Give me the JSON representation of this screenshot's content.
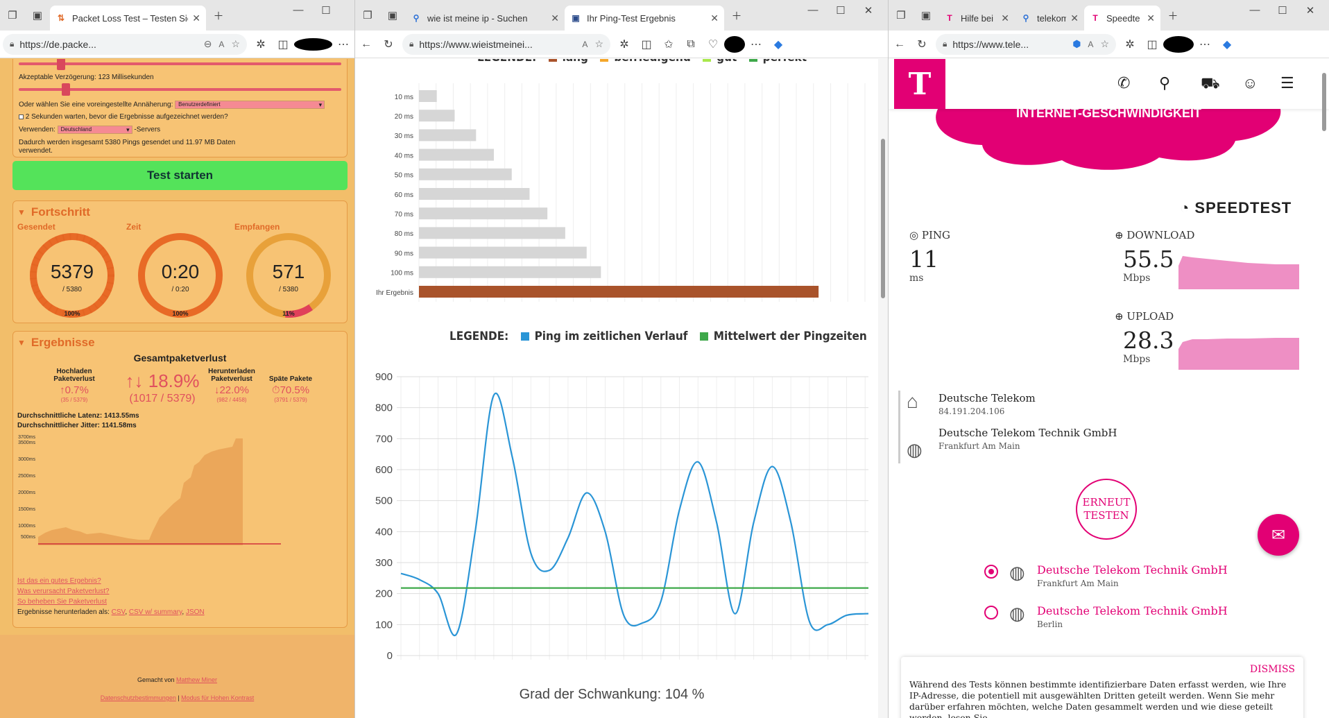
{
  "win1": {
    "tabs": [
      {
        "label": "Packet Loss Test – Testen Sie Ihr",
        "active": true
      }
    ],
    "url": "https://de.packe...",
    "settings": {
      "acceptable_delay": "Akzeptable Verzögerung: 123 Millisekunden",
      "preset_label": "Oder wählen Sie eine voreingestellte Annäherung:",
      "preset_value": "Benutzerdefiniert",
      "wait_label": "2 Sekunden warten, bevor die Ergebnisse aufgezeichnet werden?",
      "use_label": "Verwenden:",
      "server_value": "Deutschland",
      "servers_suffix": "-Servers",
      "summary": "Dadurch werden insgesamt 5380 Pings gesendet und 11.97 MB Daten verwendet."
    },
    "start_button": "Test starten",
    "progress": {
      "title": "Fortschritt",
      "sent": {
        "label": "Gesendet",
        "value": "5379",
        "sub": "/ 5380",
        "pct": "100%",
        "fraction": 1.0
      },
      "time": {
        "label": "Zeit",
        "value": "0:20",
        "sub": "/ 0:20",
        "pct": "100%",
        "fraction": 1.0
      },
      "received": {
        "label": "Empfangen",
        "value": "571",
        "sub": "/ 5380",
        "pct": "11%",
        "fraction": 0.11
      }
    },
    "results": {
      "title": "Ergebnisse",
      "total_title": "Gesamtpaketverlust",
      "upload_label": "Hochladen Paketverlust",
      "upload_value": "↑0.7%",
      "upload_sub": "(35 / 5379)",
      "total_value": "↑↓ 18.9%",
      "total_sub": "(1017 / 5379)",
      "download_label": "Herunterladen Paketverlust",
      "download_value": "↓22.0%",
      "download_sub": "(982 / 4458)",
      "late_label": "Späte Pakete",
      "late_value": "⏱70.5%",
      "late_sub": "(3791 / 5379)",
      "latency": "Durchschnittliche Latenz: 1413.55ms",
      "jitter": "Durchschnittlicher Jitter: 1141.58ms",
      "chart_ticks": [
        "3700ms",
        "3500ms",
        "3000ms",
        "2500ms",
        "2000ms",
        "1500ms",
        "1000ms",
        "500ms"
      ],
      "links": [
        "Ist das ein gutes Ergebnis?",
        "Was verursacht Paketverlust?",
        "So beheben Sie Paketverlust"
      ],
      "download_prefix": "Ergebnisse herunterladen als:",
      "download_links": [
        "CSV",
        "CSV w/ summary",
        "JSON"
      ]
    },
    "footer": {
      "made_by": "Gemacht von",
      "author": "Matthew Miner",
      "privacy": "Datenschutzbestimmungen",
      "contrast": "Modus für Hohen Kontrast"
    }
  },
  "win2": {
    "tabs": [
      {
        "label": "wie ist meine ip - Suchen",
        "active": false
      },
      {
        "label": "Ihr Ping-Test Ergebnis",
        "active": true
      }
    ],
    "url": "https://www.wieistmeinei...",
    "legend1": {
      "prefix": "LEGENDE:",
      "items": [
        "lang",
        "befriedigend",
        "gut",
        "perfekt"
      ],
      "colors": [
        "#a9532b",
        "#f4a62a",
        "#a8e84b",
        "#3ea84a"
      ]
    },
    "legend2": {
      "prefix": "LEGENDE:",
      "items": [
        "Ping im zeitlichen Verlauf",
        "Mittelwert der Pingzeiten"
      ],
      "colors": [
        "#2a95d6",
        "#3ea84a"
      ]
    },
    "variation": "Grad der Schwankung: 104 %"
  },
  "win3": {
    "tabs": [
      {
        "label": "Hilfe bei",
        "active": false
      },
      {
        "label": "telekom",
        "active": false
      },
      {
        "label": "Speedte",
        "active": true
      }
    ],
    "url": "https://www.tele...",
    "banner": "INTERNET-GESCHWINDIGKEIT",
    "speedtest_logo": "SPEEDTEST",
    "ping": {
      "label": "PING",
      "value": "11",
      "unit": "ms"
    },
    "download": {
      "label": "DOWNLOAD",
      "value": "55.5",
      "unit": "Mbps"
    },
    "upload": {
      "label": "UPLOAD",
      "value": "28.3",
      "unit": "Mbps"
    },
    "isp": {
      "name": "Deutsche Telekom",
      "ip": "84.191.204.106"
    },
    "server": {
      "name": "Deutsche Telekom Technik GmbH",
      "city": "Frankfurt Am Main"
    },
    "retest": [
      "ERNEUT",
      "TESTEN"
    ],
    "servers": [
      {
        "name": "Deutsche Telekom Technik GmbH",
        "city": "Frankfurt Am Main",
        "selected": true
      },
      {
        "name": "Deutsche Telekom Technik GmbH",
        "city": "Berlin",
        "selected": false
      }
    ],
    "consent": {
      "dismiss": "DISMISS",
      "text": "Während des Tests können bestimmte identifizierbare Daten erfasst werden, wie Ihre IP-Adresse, die potentiell mit ausgewählten Dritten geteilt werden. Wenn Sie mehr darüber erfahren möchten, welche Daten gesammelt werden und wie diese geteilt werden, lesen Sie"
    },
    "brand_color": "#e20074"
  },
  "chart_data": [
    {
      "type": "bar",
      "orientation": "horizontal",
      "categories": [
        "10 ms",
        "20 ms",
        "30 ms",
        "40 ms",
        "50 ms",
        "60 ms",
        "70 ms",
        "80 ms",
        "90 ms",
        "100 ms",
        "Ihr Ergebnis"
      ],
      "values": [
        10,
        20,
        32,
        42,
        52,
        62,
        72,
        82,
        94,
        102,
        224
      ],
      "colors": [
        "#d6d6d6",
        "#d6d6d6",
        "#d6d6d6",
        "#d6d6d6",
        "#d6d6d6",
        "#d6d6d6",
        "#d6d6d6",
        "#d6d6d6",
        "#d6d6d6",
        "#d6d6d6",
        "#a9532b"
      ],
      "xlim": [
        0,
        250
      ]
    },
    {
      "type": "line",
      "x": [
        0,
        1,
        2,
        3,
        4,
        5,
        6,
        7,
        8,
        9,
        10,
        11,
        12,
        13,
        14,
        15,
        16,
        17,
        18,
        19,
        20,
        21,
        22,
        23,
        24,
        25,
        26
      ],
      "series": [
        {
          "name": "Ping im zeitlichen Verlauf",
          "values": [
            265,
            245,
            200,
            70,
            400,
            840,
            640,
            330,
            275,
            380,
            525,
            400,
            130,
            105,
            175,
            470,
            625,
            430,
            135,
            430,
            610,
            430,
            110,
            100,
            130,
            135,
            135
          ]
        },
        {
          "name": "Mittelwert der Pingzeiten",
          "values": [
            218,
            218,
            218,
            218,
            218,
            218,
            218,
            218,
            218,
            218,
            218,
            218,
            218,
            218,
            218,
            218,
            218,
            218,
            218,
            218,
            218,
            218,
            218,
            218,
            218,
            218,
            218
          ]
        }
      ],
      "yticks": [
        0,
        100,
        200,
        300,
        400,
        500,
        600,
        700,
        800,
        900
      ],
      "ylim": [
        0,
        900
      ]
    }
  ]
}
